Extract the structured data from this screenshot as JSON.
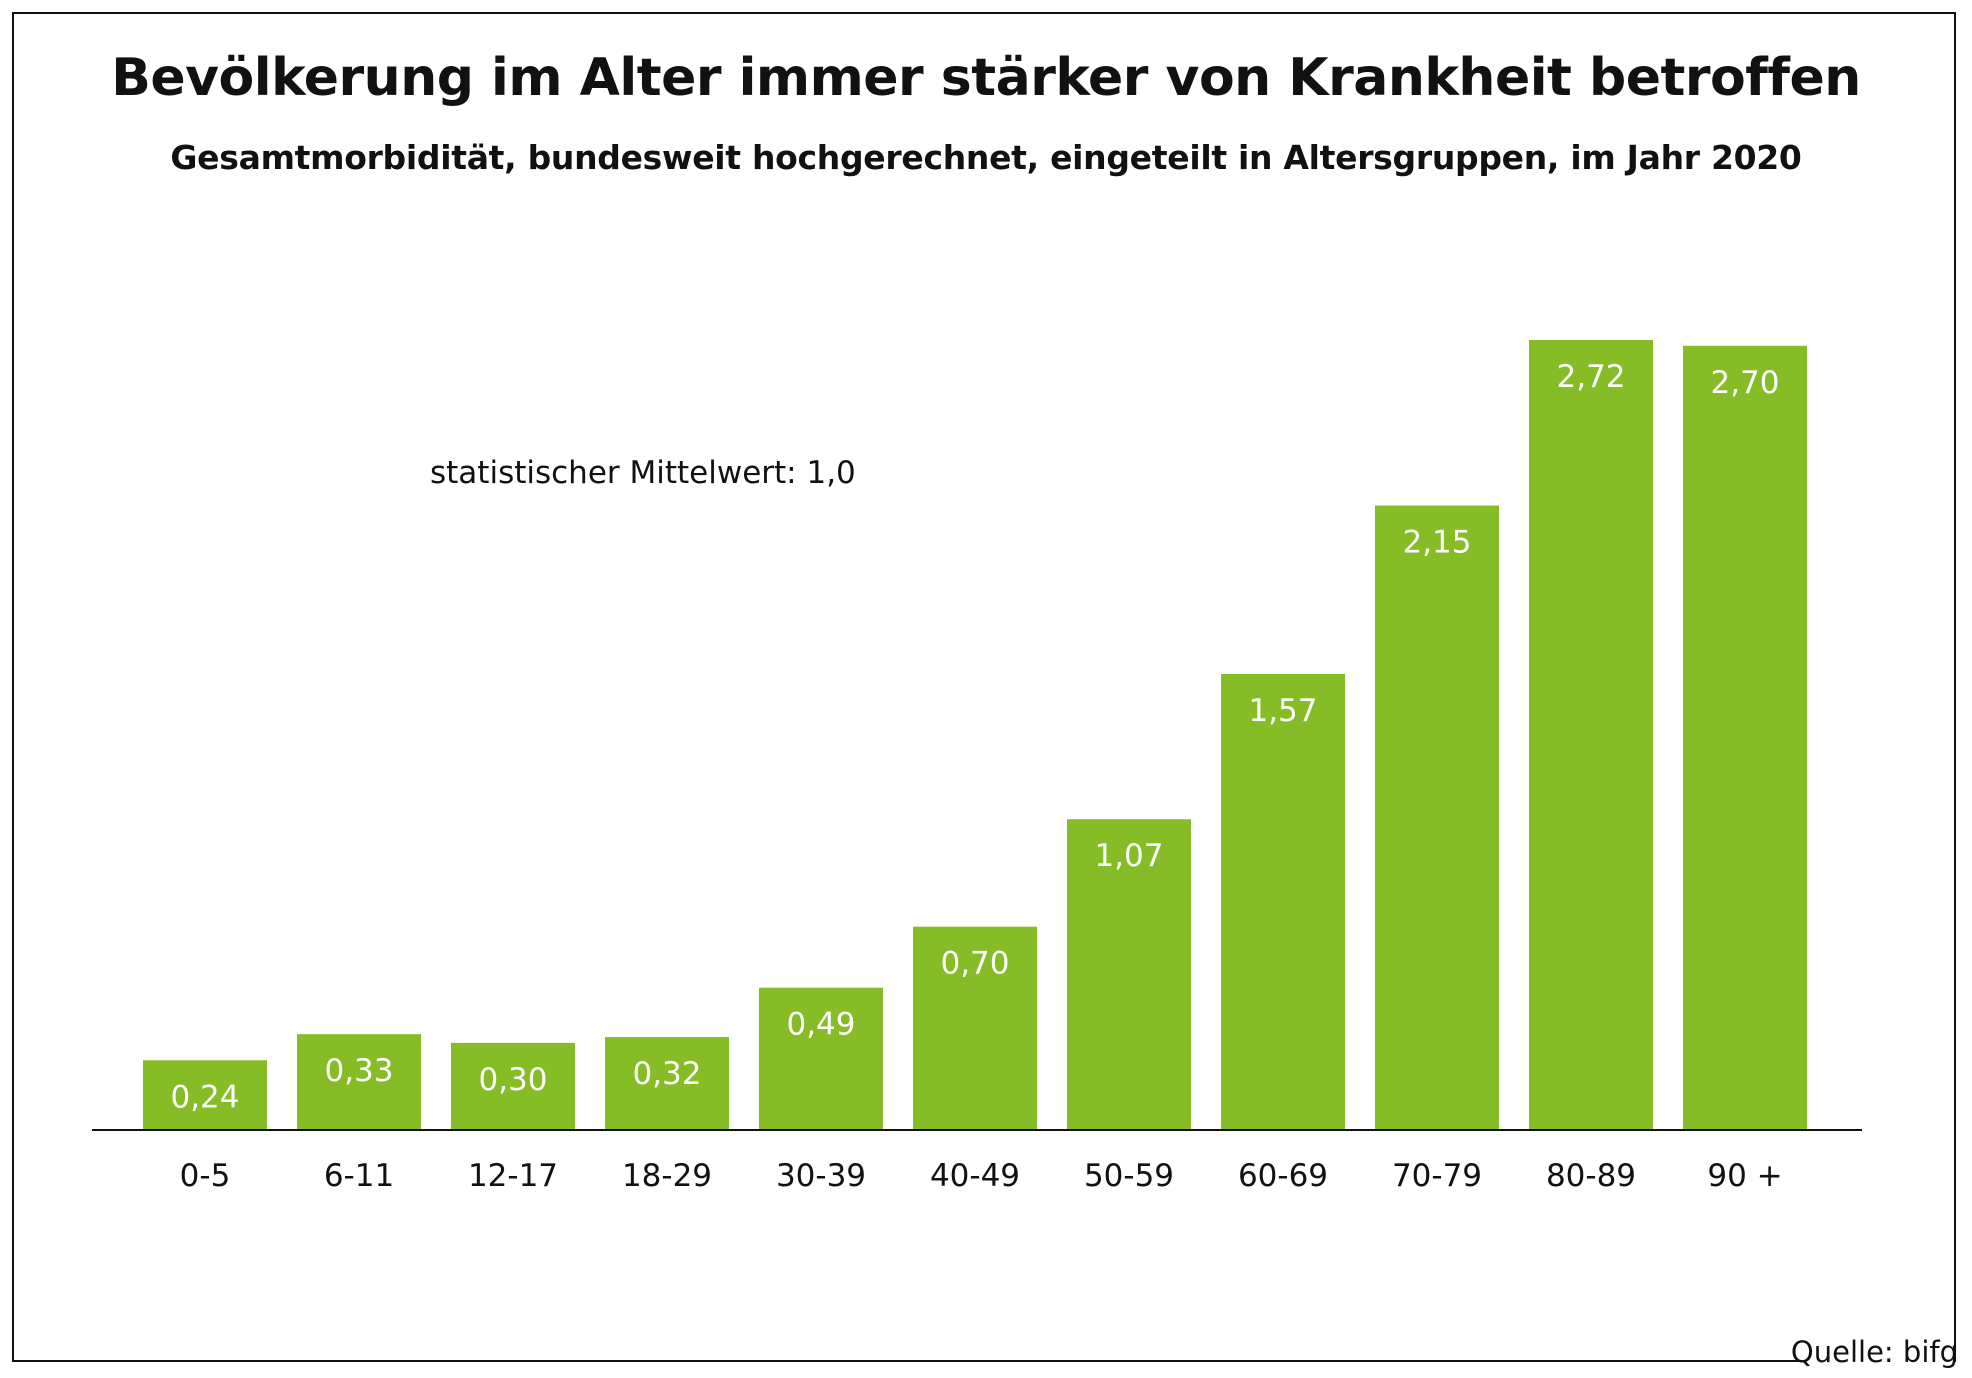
{
  "header": {
    "title": "Bevölkerung im Alter immer stärker von Krankheit betroffen",
    "subtitle": "Gesamtmorbidität, bundesweit hochgerechnet, eingeteilt in Altersgruppen, im Jahr 2020"
  },
  "annotation": "statistischer Mittelwert: 1,0",
  "footer": {
    "source": "Quelle: bifg"
  },
  "colors": {
    "bar": "#86bc25",
    "bar_label": "#ffffff",
    "axis": "#111111"
  },
  "chart_data": {
    "type": "bar",
    "title": "Bevölkerung im Alter immer stärker von Krankheit betroffen",
    "subtitle": "Gesamtmorbidität, bundesweit hochgerechnet, eingeteilt in Altersgruppen, im Jahr 2020",
    "categories": [
      "0-5",
      "6-11",
      "12-17",
      "18-29",
      "30-39",
      "40-49",
      "50-59",
      "60-69",
      "70-79",
      "80-89",
      "90 +"
    ],
    "values": [
      0.24,
      0.33,
      0.3,
      0.32,
      0.49,
      0.7,
      1.07,
      1.57,
      2.15,
      2.72,
      2.7
    ],
    "value_labels": [
      "0,24",
      "0,33",
      "0,30",
      "0,32",
      "0,49",
      "0,70",
      "1,07",
      "1,57",
      "2,15",
      "2,72",
      "2,70"
    ],
    "ylim": [
      0,
      2.72
    ],
    "grid": false,
    "legend": "none",
    "annotations": [
      "statistischer Mittelwert: 1,0"
    ],
    "source": "Quelle: bifg"
  }
}
